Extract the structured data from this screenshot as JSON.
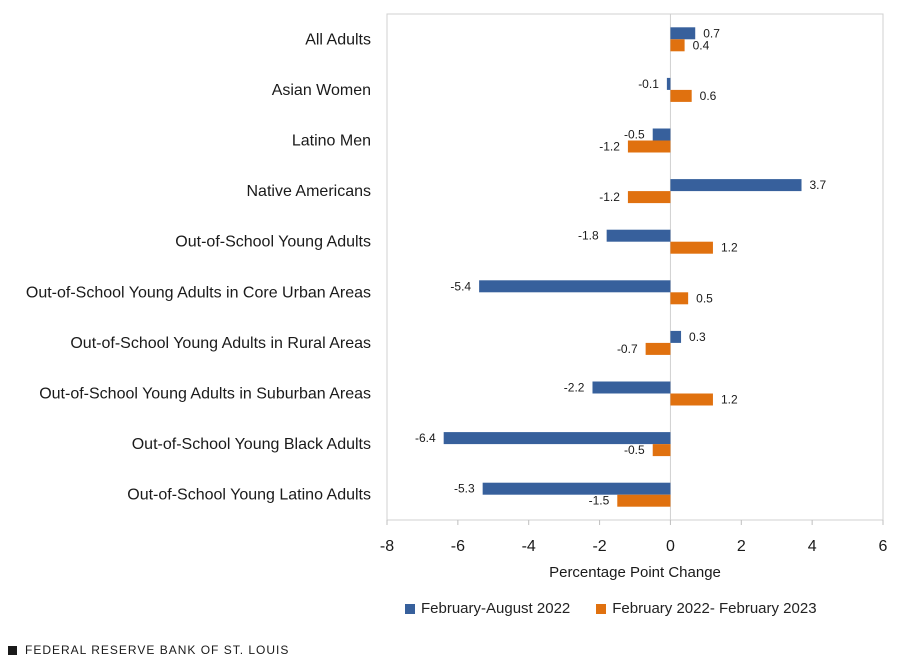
{
  "chart_data": {
    "type": "bar",
    "orientation": "horizontal",
    "categories": [
      "All Adults",
      "Asian Women",
      "Latino Men",
      "Native Americans",
      "Out-of-School Young Adults",
      "Out-of-School Young Adults in Core Urban Areas",
      "Out-of-School Young Adults in Rural Areas",
      "Out-of-School Young Adults in Suburban Areas",
      "Out-of-School Young Black Adults",
      "Out-of-School Young Latino Adults"
    ],
    "series": [
      {
        "name": "February-August 2022",
        "color": "#37609c",
        "values": [
          0.7,
          -0.1,
          -0.5,
          3.7,
          -1.8,
          -5.4,
          0.3,
          -2.2,
          -6.4,
          -5.3
        ],
        "labels": [
          "0.7",
          "-0.1",
          "-0.5",
          "3.7",
          "-1.8",
          "-5.4",
          "0.3",
          "-2.2",
          "-6.4",
          "-5.3"
        ]
      },
      {
        "name": "February 2022- February 2023",
        "color": "#e0710f",
        "values": [
          0.4,
          0.6,
          -1.2,
          -1.2,
          1.2,
          0.5,
          -0.7,
          1.2,
          -0.5,
          -1.5
        ],
        "labels": [
          "0.4",
          "0.6",
          "-1.2",
          "-1.2",
          "1.2",
          "0.5",
          "-0.7",
          "1.2",
          "-0.5",
          "-1.5"
        ]
      }
    ],
    "xlabel": "Percentage Point Change",
    "xlim": [
      -8,
      6
    ],
    "xticks": [
      -8,
      -6,
      -4,
      -2,
      0,
      2,
      4,
      6
    ],
    "legend_position": "bottom",
    "grid": false
  },
  "source": "FEDERAL RESERVE BANK OF ST. LOUIS"
}
